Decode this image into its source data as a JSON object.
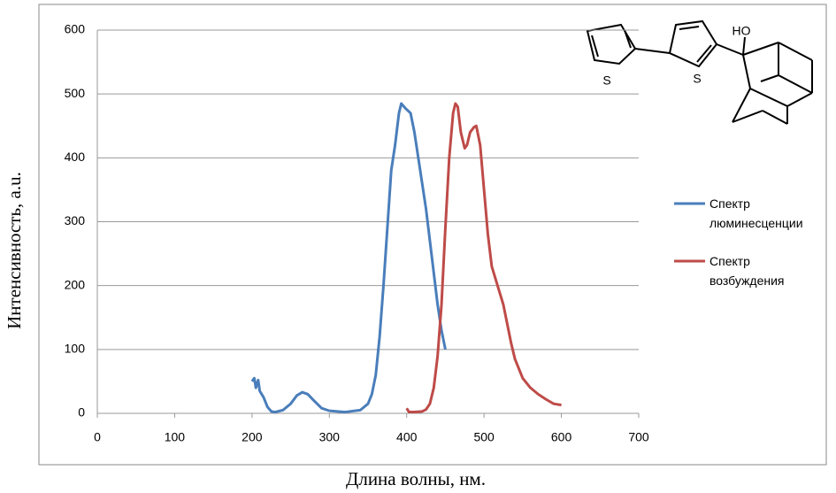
{
  "chart_data": {
    "type": "line",
    "x_label": "Длина волны, нм.",
    "y_label": "Интенсивность, a.u.",
    "xlim": [
      0,
      700
    ],
    "xticks": [
      0,
      100,
      200,
      300,
      400,
      500,
      600,
      700
    ],
    "ylim": [
      0,
      600
    ],
    "yticks": [
      0,
      100,
      200,
      300,
      400,
      500,
      600
    ],
    "grid": true,
    "legend": "right",
    "annotations": [
      "S",
      "S",
      "HO"
    ],
    "series": [
      {
        "name": "Спектр люминесценции",
        "color": "#4a7ebb",
        "x": [
          200,
          203,
          205,
          208,
          210,
          215,
          220,
          225,
          230,
          240,
          250,
          258,
          265,
          272,
          280,
          290,
          300,
          320,
          340,
          350,
          355,
          360,
          365,
          370,
          375,
          380,
          385,
          390,
          393,
          398,
          405,
          410,
          415,
          420,
          425,
          430,
          435,
          440,
          445,
          450
        ],
        "values": [
          50,
          55,
          40,
          52,
          35,
          25,
          10,
          3,
          2,
          5,
          15,
          28,
          33,
          30,
          20,
          8,
          4,
          2,
          5,
          15,
          30,
          60,
          120,
          200,
          290,
          380,
          420,
          470,
          485,
          478,
          470,
          440,
          400,
          360,
          320,
          270,
          220,
          170,
          130,
          100
        ]
      },
      {
        "name": "Спектр возбуждения",
        "color": "#be4b48",
        "x": [
          400,
          403,
          410,
          420,
          425,
          430,
          435,
          440,
          445,
          450,
          455,
          460,
          463,
          466,
          470,
          475,
          478,
          482,
          487,
          490,
          495,
          500,
          505,
          510,
          515,
          520,
          525,
          530,
          535,
          540,
          550,
          560,
          570,
          580,
          590,
          600
        ],
        "values": [
          8,
          2,
          2,
          3,
          6,
          15,
          40,
          90,
          170,
          290,
          400,
          470,
          485,
          480,
          440,
          415,
          420,
          440,
          448,
          450,
          420,
          350,
          280,
          230,
          210,
          190,
          170,
          140,
          110,
          85,
          55,
          40,
          30,
          22,
          15,
          13
        ]
      }
    ]
  }
}
